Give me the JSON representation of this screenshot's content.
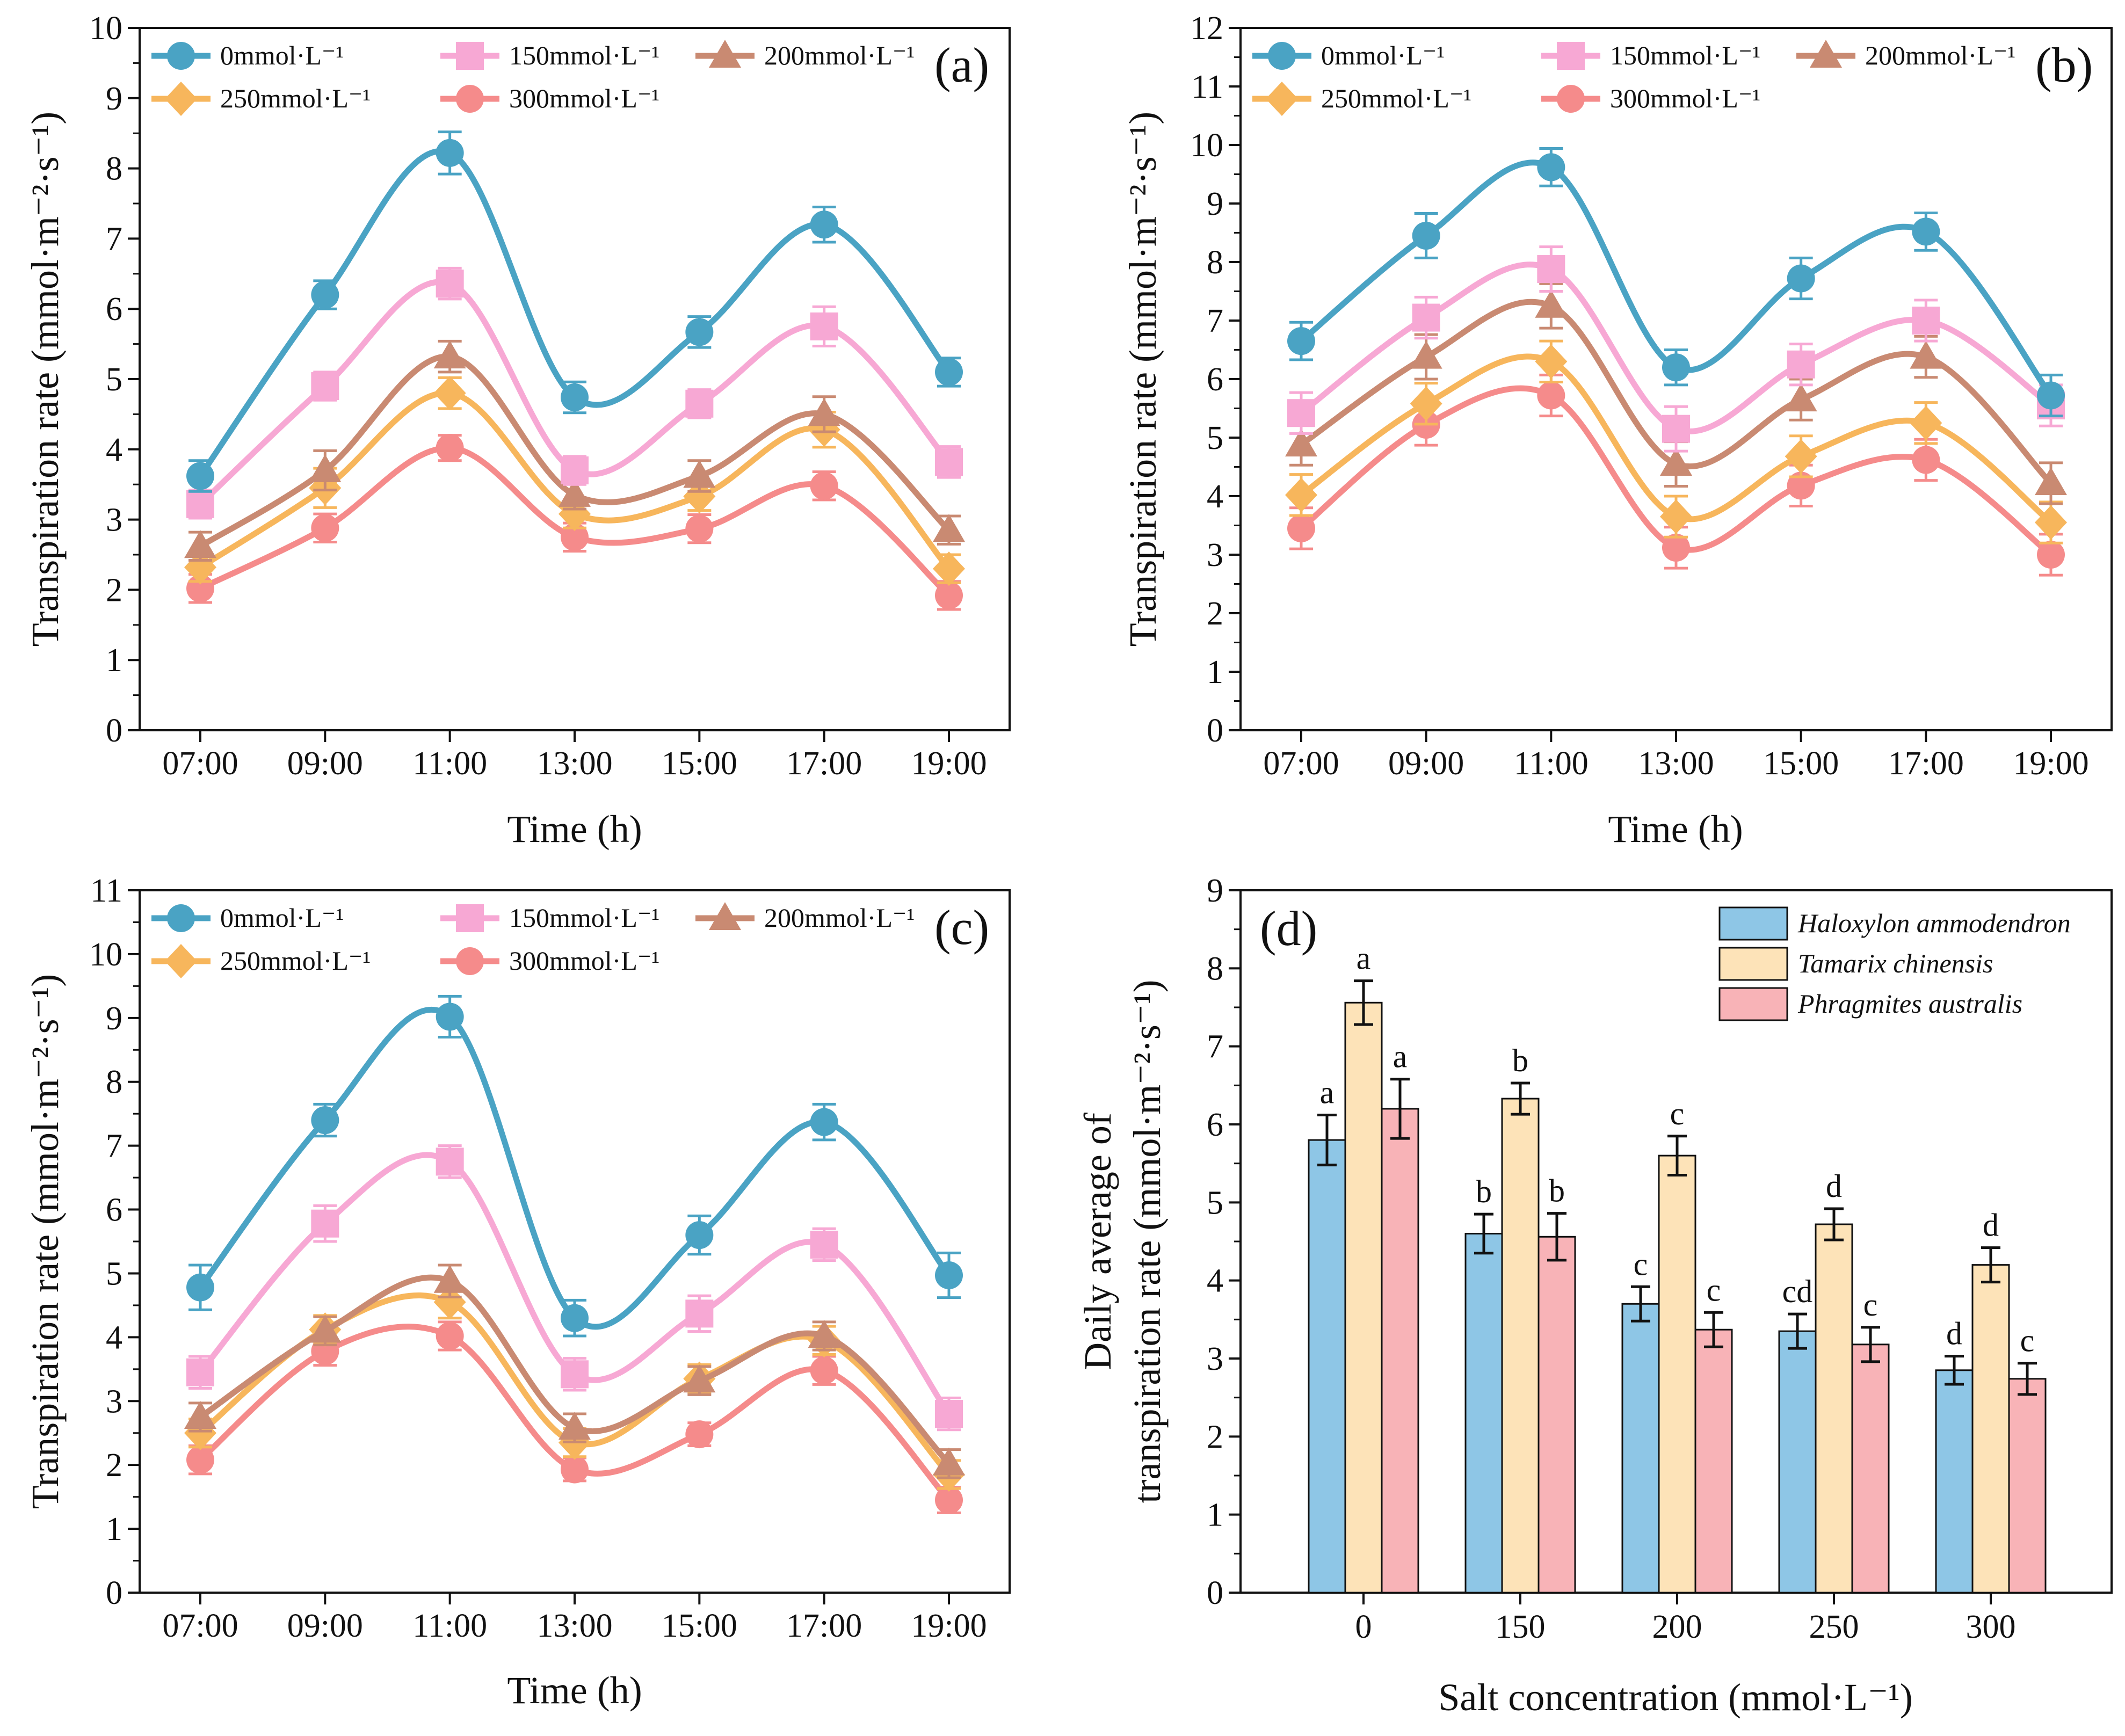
{
  "figure": {
    "series_style": {
      "0mmol": {
        "color": "#4aa3c4",
        "marker": "circle"
      },
      "150mmol": {
        "color": "#f7a8d4",
        "marker": "square"
      },
      "200mmol": {
        "color": "#c98a72",
        "marker": "triangle"
      },
      "250mmol": {
        "color": "#f7b65c",
        "marker": "diamond"
      },
      "300mmol": {
        "color": "#f58b8b",
        "marker": "circle"
      }
    },
    "bar_colors": [
      "#8ec6e6",
      "#fde3b8",
      "#f8b3b7"
    ]
  },
  "chart_data": [
    {
      "type": "line",
      "panel_label": "(a)",
      "title": "",
      "xlabel": "Time (h)",
      "ylabel": "Transpiration rate (mmol·m⁻²·s⁻¹)",
      "categories": [
        "07:00",
        "09:00",
        "11:00",
        "13:00",
        "15:00",
        "17:00",
        "19:00"
      ],
      "ylim": [
        0,
        10
      ],
      "yticks": [
        "0",
        "1",
        "2",
        "3",
        "4",
        "5",
        "6",
        "7",
        "8",
        "9",
        "10"
      ],
      "legend_position": "top",
      "series": [
        {
          "name": "0mmol·L⁻¹",
          "key": "0mmol",
          "values": [
            3.62,
            6.2,
            8.22,
            4.74,
            5.67,
            7.2,
            5.1
          ],
          "errors": [
            0.22,
            0.2,
            0.3,
            0.22,
            0.22,
            0.25,
            0.2
          ]
        },
        {
          "name": "150mmol·L⁻¹",
          "key": "150mmol",
          "values": [
            3.22,
            4.9,
            6.36,
            3.7,
            4.65,
            5.75,
            3.82
          ],
          "errors": [
            0.2,
            0.2,
            0.22,
            0.2,
            0.2,
            0.28,
            0.22
          ]
        },
        {
          "name": "200mmol·L⁻¹",
          "key": "200mmol",
          "values": [
            2.62,
            3.7,
            5.32,
            3.35,
            3.62,
            4.5,
            2.85
          ],
          "errors": [
            0.2,
            0.28,
            0.22,
            0.2,
            0.22,
            0.25,
            0.2
          ]
        },
        {
          "name": "250mmol·L⁻¹",
          "key": "250mmol",
          "values": [
            2.32,
            3.45,
            4.8,
            3.08,
            3.33,
            4.28,
            2.3
          ],
          "errors": [
            0.2,
            0.28,
            0.22,
            0.2,
            0.2,
            0.25,
            0.2
          ]
        },
        {
          "name": "300mmol·L⁻¹",
          "key": "300mmol",
          "values": [
            2.02,
            2.88,
            4.02,
            2.75,
            2.87,
            3.48,
            1.92
          ],
          "errors": [
            0.2,
            0.2,
            0.18,
            0.2,
            0.2,
            0.2,
            0.2
          ]
        }
      ]
    },
    {
      "type": "line",
      "panel_label": "(b)",
      "title": "",
      "xlabel": "Time (h)",
      "ylabel": "Transpiration rate (mmol·m⁻²·s⁻¹)",
      "categories": [
        "07:00",
        "09:00",
        "11:00",
        "13:00",
        "15:00",
        "17:00",
        "19:00"
      ],
      "ylim": [
        0,
        12
      ],
      "yticks": [
        "0",
        "1",
        "2",
        "3",
        "4",
        "5",
        "6",
        "7",
        "8",
        "9",
        "10",
        "11",
        "12"
      ],
      "legend_position": "top",
      "series": [
        {
          "name": "0mmol·L⁻¹",
          "key": "0mmol",
          "values": [
            6.65,
            8.45,
            9.62,
            6.2,
            7.72,
            8.52,
            5.72
          ],
          "errors": [
            0.32,
            0.38,
            0.32,
            0.3,
            0.35,
            0.32,
            0.35
          ]
        },
        {
          "name": "150mmol·L⁻¹",
          "key": "150mmol",
          "values": [
            5.42,
            7.05,
            7.88,
            5.15,
            6.25,
            7.0,
            5.55
          ],
          "errors": [
            0.35,
            0.35,
            0.38,
            0.38,
            0.35,
            0.35,
            0.35
          ]
        },
        {
          "name": "200mmol·L⁻¹",
          "key": "200mmol",
          "values": [
            4.88,
            6.38,
            7.25,
            4.55,
            5.65,
            6.38,
            4.22
          ],
          "errors": [
            0.35,
            0.38,
            0.38,
            0.38,
            0.35,
            0.35,
            0.35
          ]
        },
        {
          "name": "250mmol·L⁻¹",
          "key": "250mmol",
          "values": [
            4.02,
            5.58,
            6.3,
            3.65,
            4.68,
            5.25,
            3.55
          ],
          "errors": [
            0.35,
            0.35,
            0.35,
            0.35,
            0.35,
            0.35,
            0.35
          ]
        },
        {
          "name": "300mmol·L⁻¹",
          "key": "300mmol",
          "values": [
            3.45,
            5.22,
            5.72,
            3.12,
            4.18,
            4.62,
            3.0
          ],
          "errors": [
            0.35,
            0.35,
            0.35,
            0.35,
            0.35,
            0.35,
            0.35
          ]
        }
      ]
    },
    {
      "type": "line",
      "panel_label": "(c)",
      "title": "",
      "xlabel": "Time (h)",
      "ylabel": "Transpiration rate (mmol·m⁻²·s⁻¹)",
      "categories": [
        "07:00",
        "09:00",
        "11:00",
        "13:00",
        "15:00",
        "17:00",
        "19:00"
      ],
      "ylim": [
        0,
        11
      ],
      "yticks": [
        "0",
        "1",
        "2",
        "3",
        "4",
        "5",
        "6",
        "7",
        "8",
        "9",
        "10",
        "11"
      ],
      "legend_position": "top",
      "series": [
        {
          "name": "0mmol·L⁻¹",
          "key": "0mmol",
          "values": [
            4.78,
            7.4,
            9.02,
            4.3,
            5.6,
            7.37,
            4.97
          ],
          "errors": [
            0.35,
            0.25,
            0.32,
            0.28,
            0.3,
            0.28,
            0.35
          ]
        },
        {
          "name": "150mmol·L⁻¹",
          "key": "150mmol",
          "values": [
            3.45,
            5.78,
            6.75,
            3.42,
            4.37,
            5.45,
            2.8
          ],
          "errors": [
            0.25,
            0.28,
            0.25,
            0.25,
            0.28,
            0.25,
            0.25
          ]
        },
        {
          "name": "200mmol·L⁻¹",
          "key": "200mmol",
          "values": [
            2.75,
            4.1,
            4.88,
            2.58,
            3.32,
            4.02,
            2.02
          ],
          "errors": [
            0.22,
            0.22,
            0.25,
            0.22,
            0.22,
            0.22,
            0.22
          ]
        },
        {
          "name": "250mmol·L⁻¹",
          "key": "250mmol",
          "values": [
            2.5,
            4.12,
            4.55,
            2.35,
            3.35,
            3.95,
            1.85
          ],
          "errors": [
            0.22,
            0.22,
            0.25,
            0.22,
            0.22,
            0.22,
            0.22
          ]
        },
        {
          "name": "300mmol·L⁻¹",
          "key": "300mmol",
          "values": [
            2.08,
            3.78,
            4.02,
            1.93,
            2.48,
            3.48,
            1.45
          ],
          "errors": [
            0.22,
            0.22,
            0.22,
            0.18,
            0.18,
            0.22,
            0.2
          ]
        }
      ]
    },
    {
      "type": "bar",
      "panel_label": "(d)",
      "title": "",
      "xlabel": "Salt concentration (mmol·L⁻¹)",
      "ylabel_line1": "Daily average of",
      "ylabel_line2": "transpiration rate (mmol·m⁻²·s⁻¹)",
      "categories": [
        "0",
        "150",
        "200",
        "250",
        "300"
      ],
      "ylim": [
        0,
        9
      ],
      "yticks": [
        "0",
        "1",
        "2",
        "3",
        "4",
        "5",
        "6",
        "7",
        "8",
        "9"
      ],
      "legend_position": "top-right",
      "series": [
        {
          "name": "Haloxylon ammodendron",
          "values": [
            5.8,
            4.6,
            3.7,
            3.35,
            2.85
          ],
          "errors": [
            0.32,
            0.25,
            0.22,
            0.22,
            0.18
          ],
          "labels": [
            "a",
            "b",
            "c",
            "cd",
            "d"
          ]
        },
        {
          "name": "Tamarix chinensis",
          "values": [
            7.56,
            6.33,
            5.6,
            4.72,
            4.2
          ],
          "errors": [
            0.28,
            0.2,
            0.25,
            0.2,
            0.22
          ],
          "labels": [
            "a",
            "b",
            "c",
            "d",
            "d"
          ]
        },
        {
          "name": "Phragmites australis",
          "values": [
            6.2,
            4.56,
            3.37,
            3.18,
            2.74
          ],
          "errors": [
            0.38,
            0.3,
            0.22,
            0.22,
            0.2
          ],
          "labels": [
            "a",
            "b",
            "c",
            "c",
            "c"
          ]
        }
      ]
    }
  ]
}
